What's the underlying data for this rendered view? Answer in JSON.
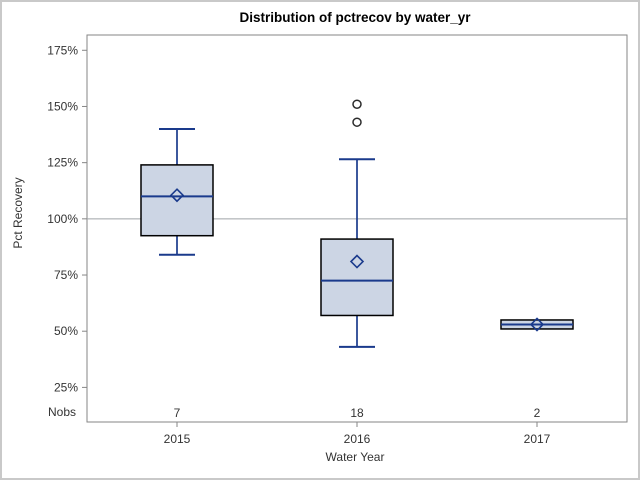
{
  "window": {
    "background": "#ffffff",
    "frame_border_color": "#c9c9c9"
  },
  "chart_data": {
    "type": "boxplot",
    "title": "Distribution of pctrecov by water_yr",
    "xlabel": "Water Year",
    "ylabel": "Pct Recovery",
    "nobs_label": "Nobs",
    "categories": [
      "2015",
      "2016",
      "2017"
    ],
    "nobs": [
      "7",
      "18",
      "2"
    ],
    "y_ticks": [
      175,
      150,
      125,
      100,
      75,
      50,
      25
    ],
    "y_tick_suffix": "%",
    "ylim": [
      9.6,
      181.8
    ],
    "grid": "off",
    "legend": null,
    "reference_line": {
      "value": 100
    },
    "series": [
      {
        "category": "2015",
        "n": 7,
        "whisker_low": 84,
        "q1": 92.5,
        "median": 110,
        "q3": 124,
        "whisker_high": 140,
        "mean": 110.5,
        "outliers": []
      },
      {
        "category": "2016",
        "n": 18,
        "whisker_low": 43,
        "q1": 57,
        "median": 72.5,
        "q3": 91,
        "whisker_high": 126.5,
        "mean": 81,
        "outliers": [
          143,
          151
        ]
      },
      {
        "category": "2017",
        "n": 2,
        "whisker_low": 51,
        "q1": 51,
        "median": 53,
        "q3": 55,
        "whisker_high": 55,
        "mean": 53,
        "outliers": []
      }
    ],
    "colors": {
      "box_fill": "#ccd5e4",
      "box_stroke": "#000000",
      "whisker_line": "#1a3a8c",
      "median_line": "#1a3a8c",
      "mean_marker": "#1a3a8c",
      "outlier_stroke": "#2b2b2b",
      "axis_frame": "#868686",
      "reference_line": "#9fa3a8",
      "tick_text": "#333333",
      "title_text": "#000000"
    }
  }
}
